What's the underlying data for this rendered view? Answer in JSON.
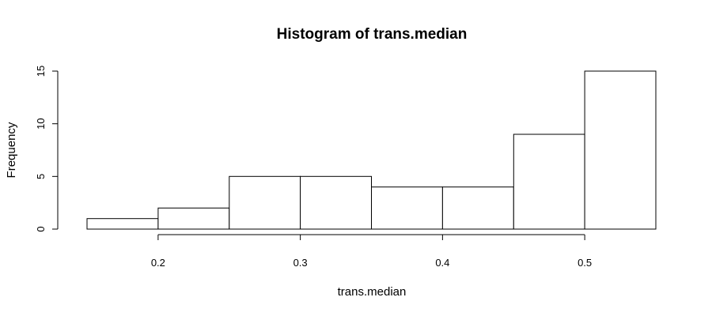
{
  "chart_data": {
    "type": "bar",
    "title": "Histogram of trans.median",
    "xlabel": "trans.median",
    "ylabel": "Frequency",
    "bins": [
      {
        "x0": 0.15,
        "x1": 0.2,
        "count": 1
      },
      {
        "x0": 0.2,
        "x1": 0.25,
        "count": 2
      },
      {
        "x0": 0.25,
        "x1": 0.3,
        "count": 5
      },
      {
        "x0": 0.3,
        "x1": 0.35,
        "count": 5
      },
      {
        "x0": 0.35,
        "x1": 0.4,
        "count": 4
      },
      {
        "x0": 0.4,
        "x1": 0.45,
        "count": 4
      },
      {
        "x0": 0.45,
        "x1": 0.5,
        "count": 9
      },
      {
        "x0": 0.5,
        "x1": 0.55,
        "count": 15
      }
    ],
    "xlim": [
      0.15,
      0.55
    ],
    "ylim": [
      0,
      15
    ],
    "xticks": [
      0.2,
      0.3,
      0.4,
      0.5
    ],
    "xtick_labels": [
      "0.2",
      "0.3",
      "0.4",
      "0.5"
    ],
    "yticks": [
      0,
      5,
      10,
      15
    ],
    "ytick_labels": [
      "0",
      "5",
      "10",
      "15"
    ],
    "grid": false,
    "bar_fill": "#ffffff",
    "bar_stroke": "#000000"
  }
}
